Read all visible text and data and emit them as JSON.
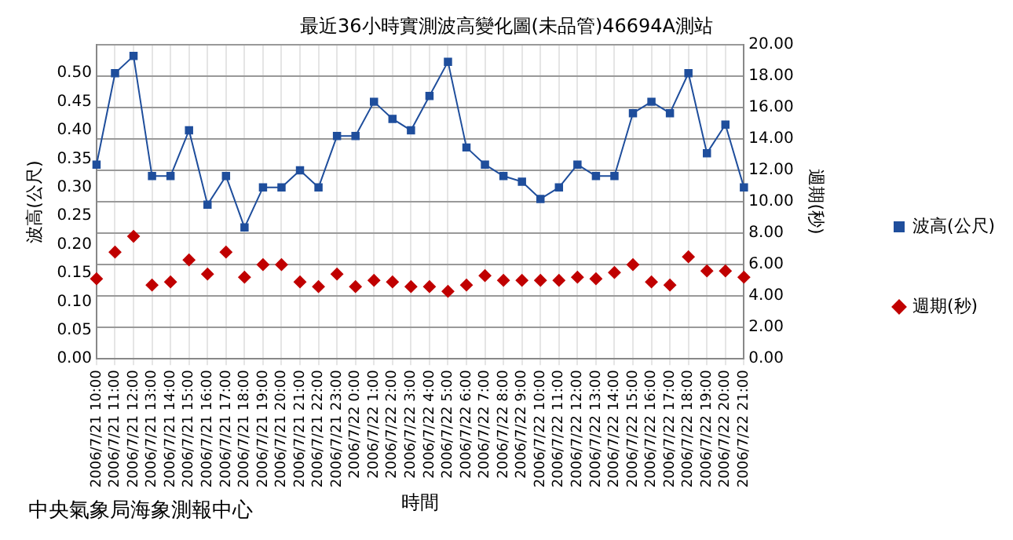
{
  "chart_data": {
    "type": "line",
    "title": "最近36小時實測波高變化圖(未品管)46694A測站",
    "xlabel": "時間",
    "ylabel": "波高(公尺)",
    "y2label": "週期(秒)",
    "categories": [
      "2006/7/21 10:00",
      "2006/7/21 11:00",
      "2006/7/21 12:00",
      "2006/7/21 13:00",
      "2006/7/21 14:00",
      "2006/7/21 15:00",
      "2006/7/21 16:00",
      "2006/7/21 17:00",
      "2006/7/21 18:00",
      "2006/7/21 19:00",
      "2006/7/21 20:00",
      "2006/7/21 21:00",
      "2006/7/21 22:00",
      "2006/7/21 23:00",
      "2006/7/22 0:00",
      "2006/7/22 1:00",
      "2006/7/22 2:00",
      "2006/7/22 3:00",
      "2006/7/22 4:00",
      "2006/7/22 5:00",
      "2006/7/22 6:00",
      "2006/7/22 7:00",
      "2006/7/22 8:00",
      "2006/7/22 9:00",
      "2006/7/22 10:00",
      "2006/7/22 11:00",
      "2006/7/22 12:00",
      "2006/7/22 13:00",
      "2006/7/22 14:00",
      "2006/7/22 15:00",
      "2006/7/22 16:00",
      "2006/7/22 17:00",
      "2006/7/22 18:00",
      "2006/7/22 19:00",
      "2006/7/22 20:00",
      "2006/7/22 21:00"
    ],
    "series": [
      {
        "name": "波高(公尺)",
        "type": "line",
        "color": "#1f4e9c",
        "marker": "square",
        "values": [
          0.34,
          0.5,
          0.53,
          0.32,
          0.32,
          0.4,
          0.27,
          0.32,
          0.23,
          0.3,
          0.3,
          0.33,
          0.3,
          0.39,
          0.39,
          0.45,
          0.42,
          0.4,
          0.46,
          0.52,
          0.37,
          0.34,
          0.32,
          0.31,
          0.28,
          0.3,
          0.34,
          0.32,
          0.32,
          0.43,
          0.45,
          0.43,
          0.5,
          0.36,
          0.41,
          0.3
        ]
      },
      {
        "name": "週期(秒)",
        "type": "scatter",
        "axis": "y2",
        "color": "#c00000",
        "marker": "diamond",
        "values": [
          5.1,
          6.8,
          7.8,
          4.7,
          4.9,
          6.3,
          5.4,
          6.8,
          5.2,
          6.0,
          6.0,
          4.9,
          4.6,
          5.4,
          4.6,
          5.0,
          4.9,
          4.6,
          4.6,
          4.3,
          4.7,
          5.3,
          5.0,
          5.0,
          5.0,
          5.0,
          5.2,
          5.1,
          5.5,
          6.0,
          4.9,
          4.7,
          6.5,
          5.6,
          5.6,
          5.2
        ]
      }
    ],
    "ylim": [
      0,
      0.55
    ],
    "yticks": [
      {
        "value": 0,
        "label": "0.00"
      },
      {
        "value": 0.05,
        "label": "0.05"
      },
      {
        "value": 0.1,
        "label": "0.10"
      },
      {
        "value": 0.15,
        "label": "0.15"
      },
      {
        "value": 0.2,
        "label": "0.20"
      },
      {
        "value": 0.25,
        "label": "0.25"
      },
      {
        "value": 0.3,
        "label": "0.30"
      },
      {
        "value": 0.35,
        "label": "0.35"
      },
      {
        "value": 0.4,
        "label": "0.40"
      },
      {
        "value": 0.45,
        "label": "0.45"
      },
      {
        "value": 0.5,
        "label": "0.50"
      }
    ],
    "y2lim": [
      0,
      20
    ],
    "y2ticks": [
      {
        "value": 0,
        "label": "0.00"
      },
      {
        "value": 2,
        "label": "2.00"
      },
      {
        "value": 4,
        "label": "4.00"
      },
      {
        "value": 6,
        "label": "6.00"
      },
      {
        "value": 8,
        "label": "8.00"
      },
      {
        "value": 10,
        "label": "10.00"
      },
      {
        "value": 12,
        "label": "12.00"
      },
      {
        "value": 14,
        "label": "14.00"
      },
      {
        "value": 16,
        "label": "16.00"
      },
      {
        "value": 18,
        "label": "18.00"
      },
      {
        "value": 20,
        "label": "20.00"
      }
    ],
    "grid": true,
    "legend": "right",
    "annotations": [
      "中央氣象局海象測報中心"
    ]
  }
}
